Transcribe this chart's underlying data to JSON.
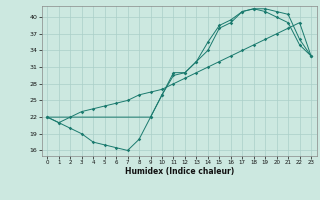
{
  "xlabel": "Humidex (Indice chaleur)",
  "bg_color": "#cce8e0",
  "line_color": "#1a7a6e",
  "grid_color": "#aacfc8",
  "xlim": [
    -0.5,
    23.5
  ],
  "ylim": [
    15,
    42
  ],
  "yticks": [
    16,
    19,
    22,
    25,
    28,
    31,
    34,
    37,
    40
  ],
  "xticks": [
    0,
    1,
    2,
    3,
    4,
    5,
    6,
    7,
    8,
    9,
    10,
    11,
    12,
    13,
    14,
    15,
    16,
    17,
    18,
    19,
    20,
    21,
    22,
    23
  ],
  "line1_x": [
    0,
    1,
    2,
    3,
    4,
    5,
    6,
    7,
    8,
    9,
    10,
    11,
    12,
    13,
    14,
    15,
    16,
    17,
    18,
    19,
    20,
    21,
    22,
    23
  ],
  "line1_y": [
    22,
    21,
    20,
    19,
    17.5,
    17,
    16.5,
    16,
    18,
    22,
    26,
    29.5,
    30,
    32,
    34,
    38,
    39,
    41,
    41.5,
    41,
    40,
    39,
    35,
    33
  ],
  "line2_x": [
    0,
    1,
    2,
    3,
    4,
    5,
    6,
    7,
    8,
    9,
    10,
    11,
    12,
    13,
    14,
    15,
    16,
    17,
    18,
    19,
    20,
    21,
    22,
    23
  ],
  "line2_y": [
    22,
    21,
    22,
    23,
    23.5,
    24,
    24.5,
    25,
    26,
    26.5,
    27,
    28,
    29,
    30,
    31,
    32,
    33,
    34,
    35,
    36,
    37,
    38,
    39,
    33
  ],
  "line3_x": [
    0,
    9,
    10,
    11,
    12,
    13,
    14,
    15,
    16,
    17,
    18,
    19,
    20,
    21,
    22,
    23
  ],
  "line3_y": [
    22,
    22,
    26,
    30,
    30,
    32,
    35.5,
    38.5,
    39.5,
    41,
    41.5,
    41.5,
    41,
    40.5,
    36,
    33
  ]
}
